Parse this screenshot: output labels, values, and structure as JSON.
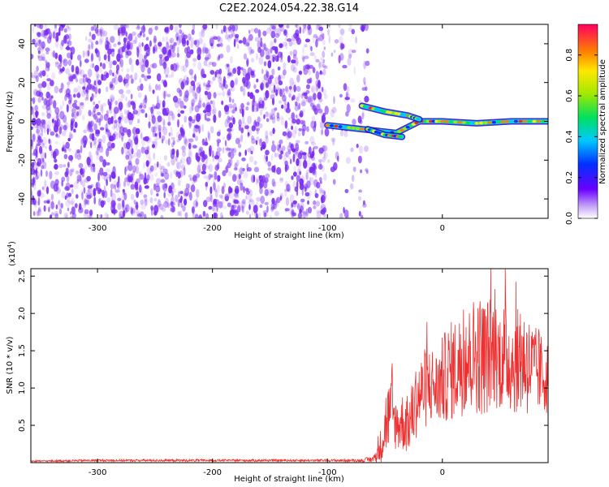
{
  "title": "C2E2.2024.054.22.38.G14",
  "colors": {
    "noise": "#7a2cf0",
    "snr_line": "#ee3030",
    "axis": "#000000"
  },
  "chart_data": [
    {
      "type": "heatmap",
      "xlabel": "Height of straight line (km)",
      "ylabel": "Frequency (Hz)",
      "xlim": [
        -358,
        92
      ],
      "ylim": [
        -50,
        50
      ],
      "xticks": [
        -300,
        -200,
        -100,
        0
      ],
      "yticks": [
        -40,
        -20,
        0,
        20,
        40
      ],
      "colorbar": {
        "label": "Normalized spectral amplitude",
        "range": [
          0.0,
          0.95
        ],
        "ticks": [
          0.0,
          0.2,
          0.4,
          0.6,
          0.8
        ],
        "colormap": "rainbow"
      },
      "features": {
        "noise_region_x": [
          -358,
          -80
        ],
        "signal_tracks": [
          {
            "x": [
              -100,
              -70,
              -40,
              -20,
              0,
              30,
              60,
              92
            ],
            "y": [
              -2,
              -4,
              -6,
              0,
              0,
              -1,
              0,
              0
            ]
          },
          {
            "x": [
              -70,
              -50,
              -30,
              -20
            ],
            "y": [
              8,
              5,
              3,
              1
            ]
          },
          {
            "x": [
              -65,
              -50,
              -35
            ],
            "y": [
              -4,
              -7,
              -8
            ]
          }
        ]
      }
    },
    {
      "type": "line",
      "xlabel": "Height of straight line (km)",
      "ylabel": "SNR (10 * v/v)",
      "y_multiplier": "(x10",
      "y_multiplier_exp": "4",
      "xlim": [
        -358,
        92
      ],
      "ylim": [
        0,
        2.6
      ],
      "xticks": [
        -300,
        -200,
        -100,
        0
      ],
      "yticks": [
        0.5,
        1.0,
        1.5,
        2.0,
        2.5
      ],
      "series": [
        {
          "color": "#ee3030",
          "x": [
            -358,
            -300,
            -200,
            -100,
            -70,
            -60,
            -55,
            -50,
            -45,
            -40,
            -35,
            -30,
            -25,
            -20,
            -15,
            -10,
            -5,
            0,
            5,
            10,
            15,
            20,
            25,
            30,
            35,
            40,
            45,
            50,
            55,
            60,
            65,
            70,
            75,
            80,
            85,
            90
          ],
          "y": [
            0.02,
            0.03,
            0.03,
            0.03,
            0.03,
            0.05,
            0.15,
            0.5,
            0.7,
            0.5,
            0.55,
            0.5,
            0.7,
            0.9,
            1.0,
            1.05,
            1.0,
            1.1,
            1.2,
            1.25,
            1.3,
            1.35,
            1.4,
            1.5,
            1.4,
            1.45,
            1.5,
            1.4,
            1.45,
            1.35,
            1.35,
            1.4,
            1.3,
            1.25,
            1.2,
            1.15
          ],
          "spread": [
            0.01,
            0.015,
            0.015,
            0.015,
            0.02,
            0.05,
            0.15,
            0.5,
            0.45,
            0.35,
            0.4,
            0.4,
            0.45,
            0.5,
            0.55,
            0.55,
            0.5,
            0.6,
            0.65,
            0.7,
            0.7,
            0.7,
            0.75,
            0.85,
            0.8,
            0.8,
            0.75,
            0.7,
            0.75,
            0.7,
            0.7,
            0.75,
            0.7,
            0.6,
            0.55,
            0.5
          ]
        }
      ]
    }
  ]
}
